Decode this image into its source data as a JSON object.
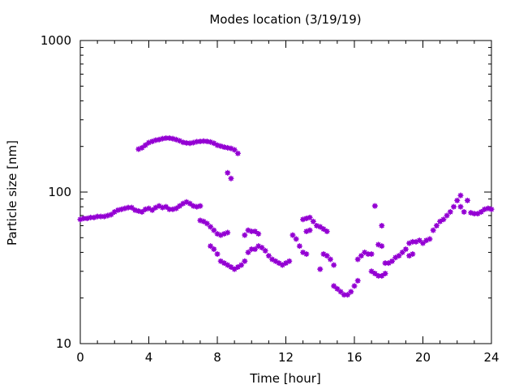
{
  "chart_data": {
    "type": "scatter",
    "title": "Modes location (3/19/19)",
    "xlabel": "Time [hour]",
    "ylabel": "Particle size [nm]",
    "xlim": [
      0,
      24
    ],
    "ylim": [
      10,
      1000
    ],
    "y_scale": "log",
    "grid": false,
    "marker_color": "#9400d3",
    "x_ticks": [
      0,
      4,
      8,
      12,
      16,
      20,
      24
    ],
    "x_tick_labels": [
      "0",
      "4",
      "8",
      "12",
      "16",
      "20",
      "24"
    ],
    "y_ticks": [
      10,
      100,
      1000
    ],
    "y_tick_labels": [
      "10",
      "100",
      "1000"
    ],
    "series": [
      {
        "points": [
          [
            0.0,
            66
          ],
          [
            0.2,
            67
          ],
          [
            0.4,
            67
          ],
          [
            0.6,
            68
          ],
          [
            0.8,
            68
          ],
          [
            1.0,
            69
          ],
          [
            1.2,
            69
          ],
          [
            1.4,
            69
          ],
          [
            1.6,
            70
          ],
          [
            1.8,
            71
          ],
          [
            2.0,
            74
          ],
          [
            2.2,
            76
          ],
          [
            2.4,
            77
          ],
          [
            2.6,
            78
          ],
          [
            2.8,
            79
          ],
          [
            3.0,
            79
          ],
          [
            3.2,
            76
          ],
          [
            3.4,
            75
          ],
          [
            3.6,
            74
          ],
          [
            3.8,
            77
          ],
          [
            4.0,
            78
          ],
          [
            4.2,
            76
          ],
          [
            4.4,
            79
          ],
          [
            4.6,
            81
          ],
          [
            4.8,
            79
          ],
          [
            5.0,
            80
          ],
          [
            5.2,
            77
          ],
          [
            5.4,
            77
          ],
          [
            5.6,
            78
          ],
          [
            5.8,
            81
          ],
          [
            6.0,
            84
          ],
          [
            6.2,
            86
          ],
          [
            6.4,
            84
          ],
          [
            6.6,
            81
          ],
          [
            6.8,
            80
          ],
          [
            7.0,
            81
          ],
          [
            7.0,
            65
          ],
          [
            7.2,
            64
          ],
          [
            7.4,
            62
          ],
          [
            7.6,
            59
          ],
          [
            7.8,
            56
          ],
          [
            8.0,
            53
          ],
          [
            8.2,
            52
          ],
          [
            8.4,
            53
          ],
          [
            8.6,
            54
          ],
          [
            7.6,
            44
          ],
          [
            7.8,
            42
          ],
          [
            8.0,
            39
          ],
          [
            8.2,
            35
          ],
          [
            8.4,
            34
          ],
          [
            8.6,
            33
          ],
          [
            8.8,
            32
          ],
          [
            9.0,
            31
          ],
          [
            9.2,
            32
          ],
          [
            9.4,
            33
          ],
          [
            9.6,
            35
          ],
          [
            9.8,
            40
          ],
          [
            10.0,
            42
          ],
          [
            10.2,
            42
          ],
          [
            10.4,
            44
          ],
          [
            10.6,
            43
          ],
          [
            10.8,
            41
          ],
          [
            11.0,
            38
          ],
          [
            11.2,
            36
          ],
          [
            11.4,
            35
          ],
          [
            11.6,
            34
          ],
          [
            11.8,
            33
          ],
          [
            12.0,
            34
          ],
          [
            12.2,
            35
          ],
          [
            9.6,
            52
          ],
          [
            9.8,
            56
          ],
          [
            10.0,
            55
          ],
          [
            10.2,
            55
          ],
          [
            10.4,
            53
          ],
          [
            12.4,
            52
          ],
          [
            12.6,
            49
          ],
          [
            12.8,
            44
          ],
          [
            13.0,
            40
          ],
          [
            13.2,
            39
          ],
          [
            13.0,
            66
          ],
          [
            13.2,
            67
          ],
          [
            13.4,
            68
          ],
          [
            13.6,
            64
          ],
          [
            13.8,
            60
          ],
          [
            14.0,
            59
          ],
          [
            14.2,
            57
          ],
          [
            14.4,
            55
          ],
          [
            13.2,
            55
          ],
          [
            13.4,
            56
          ],
          [
            14.0,
            31
          ],
          [
            14.2,
            39
          ],
          [
            14.4,
            38
          ],
          [
            14.6,
            36
          ],
          [
            14.8,
            33
          ],
          [
            14.8,
            24
          ],
          [
            15.0,
            23
          ],
          [
            15.2,
            22
          ],
          [
            15.4,
            21
          ],
          [
            15.6,
            21
          ],
          [
            15.8,
            22
          ],
          [
            16.0,
            24
          ],
          [
            16.2,
            26
          ],
          [
            16.2,
            36
          ],
          [
            16.4,
            38
          ],
          [
            16.6,
            40
          ],
          [
            16.8,
            39
          ],
          [
            17.0,
            39
          ],
          [
            17.0,
            30
          ],
          [
            17.2,
            29
          ],
          [
            17.4,
            28
          ],
          [
            17.6,
            28
          ],
          [
            17.8,
            29
          ],
          [
            17.2,
            81
          ],
          [
            17.4,
            45
          ],
          [
            17.6,
            44
          ],
          [
            17.6,
            60
          ],
          [
            17.8,
            34
          ],
          [
            18.0,
            34
          ],
          [
            18.2,
            35
          ],
          [
            18.4,
            37
          ],
          [
            18.6,
            38
          ],
          [
            18.8,
            40
          ],
          [
            19.0,
            42
          ],
          [
            19.2,
            38
          ],
          [
            19.4,
            39
          ],
          [
            19.2,
            46
          ],
          [
            19.4,
            47
          ],
          [
            19.6,
            47
          ],
          [
            19.8,
            48
          ],
          [
            20.0,
            46
          ],
          [
            20.2,
            48
          ],
          [
            20.4,
            49
          ],
          [
            20.6,
            56
          ],
          [
            20.8,
            60
          ],
          [
            21.0,
            64
          ],
          [
            21.2,
            66
          ],
          [
            21.4,
            70
          ],
          [
            21.6,
            74
          ],
          [
            21.8,
            80
          ],
          [
            22.0,
            88
          ],
          [
            22.2,
            95
          ],
          [
            22.2,
            80
          ],
          [
            22.4,
            74
          ],
          [
            22.6,
            88
          ],
          [
            22.8,
            73
          ],
          [
            23.0,
            72
          ],
          [
            23.2,
            72
          ],
          [
            23.4,
            74
          ],
          [
            23.6,
            77
          ],
          [
            23.8,
            78
          ],
          [
            24.0,
            77
          ],
          [
            3.4,
            192
          ],
          [
            3.6,
            196
          ],
          [
            3.8,
            204
          ],
          [
            4.0,
            212
          ],
          [
            4.2,
            216
          ],
          [
            4.4,
            220
          ],
          [
            4.6,
            222
          ],
          [
            4.8,
            225
          ],
          [
            5.0,
            227
          ],
          [
            5.2,
            227
          ],
          [
            5.4,
            225
          ],
          [
            5.6,
            222
          ],
          [
            5.8,
            218
          ],
          [
            6.0,
            213
          ],
          [
            6.2,
            211
          ],
          [
            6.4,
            210
          ],
          [
            6.6,
            212
          ],
          [
            6.8,
            215
          ],
          [
            7.0,
            216
          ],
          [
            7.2,
            217
          ],
          [
            7.4,
            216
          ],
          [
            7.6,
            214
          ],
          [
            7.8,
            210
          ],
          [
            8.0,
            204
          ],
          [
            8.2,
            201
          ],
          [
            8.4,
            198
          ],
          [
            8.6,
            196
          ],
          [
            8.8,
            194
          ],
          [
            9.0,
            190
          ],
          [
            9.2,
            180
          ],
          [
            8.6,
            134
          ],
          [
            8.8,
            123
          ]
        ]
      }
    ]
  }
}
